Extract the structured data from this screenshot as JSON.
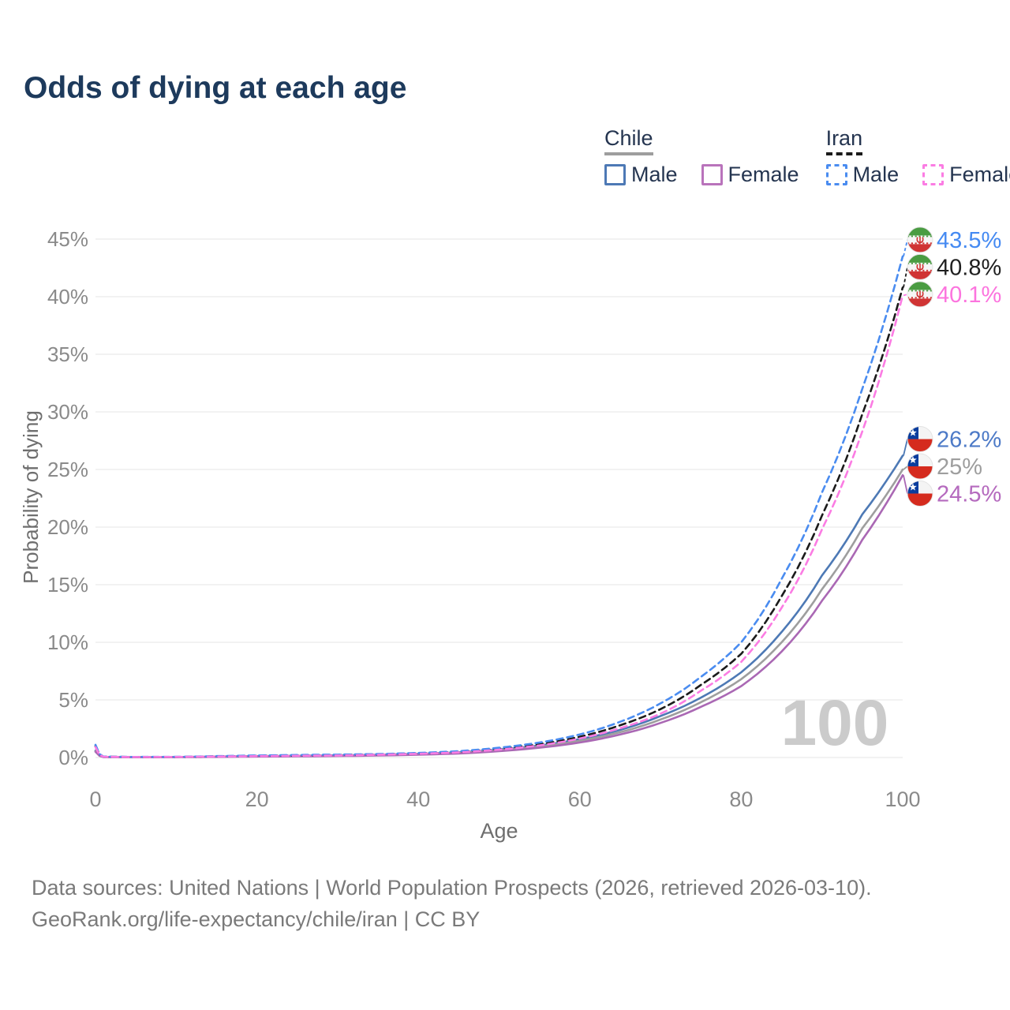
{
  "page": {
    "title": "Odds of dying at each age",
    "footer_line1": "Data sources: United Nations | World Population Prospects (2026, retrieved 2026-03-10).",
    "footer_line2": "GeoRank.org/life-expectancy/chile/iran | CC BY"
  },
  "legend": {
    "groups": [
      {
        "label": "Chile",
        "line_style": "solid",
        "line_color": "#9e9e9e",
        "items": [
          {
            "label": "Male",
            "color": "#4d79b5",
            "dashed": false
          },
          {
            "label": "Female",
            "color": "#b973bb",
            "dashed": false
          }
        ]
      },
      {
        "label": "Iran",
        "line_style": "dashed",
        "line_color": "#1b1b1b",
        "items": [
          {
            "label": "Male",
            "color": "#4a8cf0",
            "dashed": true
          },
          {
            "label": "Female",
            "color": "#fb7ce3",
            "dashed": true
          }
        ]
      }
    ]
  },
  "chart_data": {
    "type": "line",
    "title": "Odds of dying at each age",
    "xlabel": "Age",
    "ylabel": "Probability of dying",
    "x_ticks": [
      0,
      20,
      40,
      60,
      80,
      100
    ],
    "y_ticks_percent": [
      0,
      5,
      10,
      15,
      20,
      25,
      30,
      35,
      40,
      45
    ],
    "xlim": [
      0,
      100
    ],
    "ylim": [
      0,
      45.8
    ],
    "grid": true,
    "legend_position": "top-right",
    "hover_age_watermark": "100",
    "gridline_color": "#eaeaea",
    "tick_label_color": "#8a8a8a",
    "axis_title_color": "#6e6e6e",
    "watermark_color": "#cbcbcb",
    "ages": [
      0,
      1,
      5,
      10,
      15,
      20,
      25,
      30,
      35,
      40,
      45,
      50,
      55,
      60,
      65,
      70,
      75,
      80,
      85,
      90,
      95,
      100
    ],
    "series": [
      {
        "id": "chile-male",
        "country": "Chile",
        "sex": "male",
        "flag": "chile",
        "color": "#4d79b5",
        "dashed": false,
        "end_label": "26.2%",
        "label_color": "#4d7ac7",
        "values_percent": [
          0.6,
          0.05,
          0.03,
          0.04,
          0.08,
          0.12,
          0.15,
          0.19,
          0.24,
          0.32,
          0.45,
          0.7,
          1.05,
          1.6,
          2.4,
          3.6,
          5.2,
          7.4,
          10.9,
          15.8,
          21.1,
          26.2
        ]
      },
      {
        "id": "chile-average",
        "country": "Chile",
        "sex": "both",
        "flag": "chile",
        "color": "#9e9e9e",
        "dashed": false,
        "end_label": "25%",
        "label_color": "#9e9e9e",
        "values_percent": [
          0.55,
          0.04,
          0.02,
          0.03,
          0.07,
          0.1,
          0.13,
          0.16,
          0.21,
          0.28,
          0.4,
          0.62,
          0.95,
          1.45,
          2.2,
          3.3,
          4.8,
          6.8,
          10.0,
          14.6,
          19.9,
          25.0
        ]
      },
      {
        "id": "chile-female",
        "country": "Chile",
        "sex": "female",
        "flag": "chile",
        "color": "#aa68b4",
        "dashed": false,
        "end_label": "24.5%",
        "label_color": "#b56abe",
        "values_percent": [
          0.5,
          0.04,
          0.02,
          0.03,
          0.05,
          0.08,
          0.1,
          0.13,
          0.17,
          0.24,
          0.35,
          0.55,
          0.85,
          1.3,
          2.0,
          3.0,
          4.4,
          6.2,
          9.2,
          13.6,
          18.9,
          24.5
        ]
      },
      {
        "id": "iran-average",
        "country": "Iran",
        "sex": "both",
        "flag": "iran",
        "color": "#1b1b1b",
        "dashed": true,
        "end_label": "40.8%",
        "label_color": "#1f1f1f",
        "values_percent": [
          1.0,
          0.07,
          0.04,
          0.05,
          0.1,
          0.15,
          0.18,
          0.22,
          0.27,
          0.36,
          0.5,
          0.75,
          1.15,
          1.8,
          2.8,
          4.2,
          6.3,
          9.0,
          14.0,
          21.0,
          29.8,
          40.8
        ]
      },
      {
        "id": "iran-male",
        "country": "Iran",
        "sex": "male",
        "flag": "iran",
        "color": "#4a8cf0",
        "dashed": true,
        "end_label": "43.5%",
        "label_color": "#458af2",
        "values_percent": [
          1.1,
          0.08,
          0.05,
          0.06,
          0.12,
          0.18,
          0.22,
          0.25,
          0.3,
          0.4,
          0.55,
          0.85,
          1.3,
          2.0,
          3.1,
          4.7,
          7.0,
          10.0,
          15.5,
          23.0,
          32.0,
          43.5
        ]
      },
      {
        "id": "iran-female",
        "country": "Iran",
        "sex": "female",
        "flag": "iran",
        "color": "#fb7ce3",
        "dashed": true,
        "end_label": "40.1%",
        "label_color": "#fc74de",
        "values_percent": [
          0.9,
          0.06,
          0.04,
          0.05,
          0.08,
          0.12,
          0.15,
          0.18,
          0.24,
          0.32,
          0.45,
          0.68,
          1.05,
          1.65,
          2.55,
          3.8,
          5.8,
          8.3,
          13.0,
          19.8,
          28.3,
          40.1
        ]
      }
    ]
  }
}
